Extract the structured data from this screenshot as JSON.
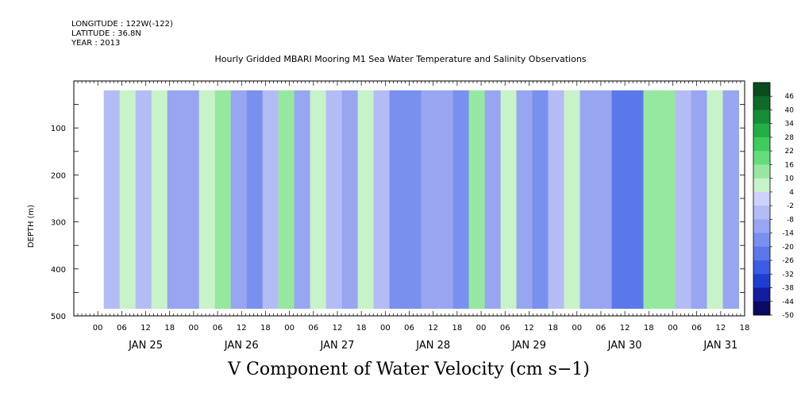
{
  "header": {
    "longitude": "LONGITUDE : 122W(-122)",
    "latitude": "LATITUDE : 36.8N",
    "year": "YEAR : 2013",
    "title": "Hourly Gridded MBARI Mooring M1 Sea Water Temperature and Salinity Observations"
  },
  "footer": {
    "title": "V Component of Water Velocity (cm s−1)"
  },
  "chart_data": {
    "type": "heatmap",
    "title": "Hourly Gridded MBARI Mooring M1 Sea Water Temperature and Salinity Observations",
    "variable": "V Component of Water Velocity (cm s−1)",
    "ylabel": "DEPTH (m)",
    "ylim": [
      500,
      0
    ],
    "y_ticks": [
      100,
      200,
      300,
      400,
      500
    ],
    "x_hour_ticks": [
      "00",
      "06",
      "12",
      "18",
      "00",
      "06",
      "12",
      "18",
      "00",
      "06",
      "12",
      "18",
      "00",
      "06",
      "12",
      "18",
      "00",
      "06",
      "12",
      "18",
      "00",
      "06",
      "12",
      "18",
      "00",
      "06",
      "12",
      "18"
    ],
    "x_day_labels": [
      "JAN 25",
      "JAN 26",
      "JAN 27",
      "JAN 28",
      "JAN 29",
      "JAN 30",
      "JAN 31"
    ],
    "x_range_hours": [
      -6,
      162
    ],
    "data_start_hour": 1.5,
    "data_end_hour": 160.5,
    "data_depth_range": [
      20,
      485
    ],
    "colorbar": {
      "levels": [
        -50,
        -44,
        -38,
        -32,
        -26,
        -20,
        -14,
        -8,
        -2,
        4,
        10,
        16,
        22,
        28,
        34,
        40,
        46
      ],
      "colors": [
        "#0a0a60",
        "#141ca0",
        "#1e3ed2",
        "#3a5ce6",
        "#5a78ea",
        "#7a90ee",
        "#98a6f2",
        "#b4bcf6",
        "#cdd2fa",
        "#c8f2c8",
        "#96e8a0",
        "#66dc7c",
        "#3ccc5c",
        "#22ae44",
        "#168c36",
        "#0d6a29",
        "#084c1c"
      ]
    },
    "profile_columns": [
      {
        "hour": 4,
        "value": -4
      },
      {
        "hour": 8,
        "value": 6
      },
      {
        "hour": 12,
        "value": -8
      },
      {
        "hour": 16,
        "value": 8
      },
      {
        "hour": 20,
        "value": -10
      },
      {
        "hour": 24,
        "value": -14
      },
      {
        "hour": 28,
        "value": 8
      },
      {
        "hour": 32,
        "value": 12
      },
      {
        "hour": 36,
        "value": -12
      },
      {
        "hour": 40,
        "value": -16
      },
      {
        "hour": 44,
        "value": -6
      },
      {
        "hour": 48,
        "value": 10
      },
      {
        "hour": 52,
        "value": -12
      },
      {
        "hour": 56,
        "value": 6
      },
      {
        "hour": 60,
        "value": -8
      },
      {
        "hour": 64,
        "value": -14
      },
      {
        "hour": 68,
        "value": 8
      },
      {
        "hour": 72,
        "value": -6
      },
      {
        "hour": 76,
        "value": -16
      },
      {
        "hour": 80,
        "value": -18
      },
      {
        "hour": 84,
        "value": -10
      },
      {
        "hour": 88,
        "value": -14
      },
      {
        "hour": 92,
        "value": -20
      },
      {
        "hour": 96,
        "value": 10
      },
      {
        "hour": 100,
        "value": -12
      },
      {
        "hour": 104,
        "value": 8
      },
      {
        "hour": 108,
        "value": -10
      },
      {
        "hour": 112,
        "value": -16
      },
      {
        "hour": 116,
        "value": -6
      },
      {
        "hour": 120,
        "value": 6
      },
      {
        "hour": 124,
        "value": -14
      },
      {
        "hour": 128,
        "value": -10
      },
      {
        "hour": 132,
        "value": -22
      },
      {
        "hour": 136,
        "value": -24
      },
      {
        "hour": 140,
        "value": 14
      },
      {
        "hour": 144,
        "value": 10
      },
      {
        "hour": 148,
        "value": -6
      },
      {
        "hour": 152,
        "value": -12
      },
      {
        "hour": 156,
        "value": 6
      },
      {
        "hour": 160,
        "value": -14
      }
    ]
  }
}
